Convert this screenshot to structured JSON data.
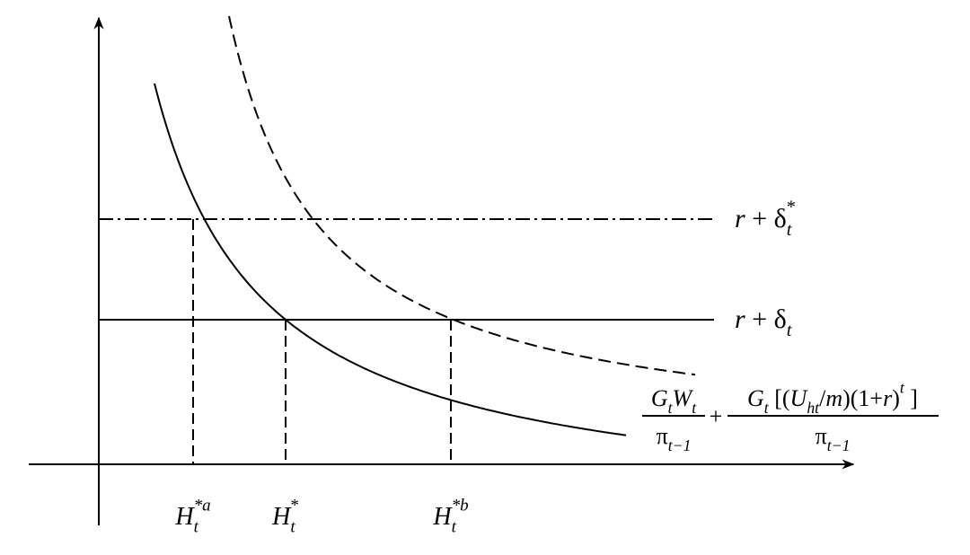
{
  "levels": [
    {
      "label": [
        {
          "text": "r",
          "pos": "base",
          "italic": true
        },
        {
          "text": " + δ",
          "pos": "base"
        },
        {
          "text": "t",
          "pos": "sub",
          "italic": true
        },
        {
          "text": "*",
          "pos": "sup",
          "stack": true
        }
      ]
    },
    {
      "label": [
        {
          "text": "r",
          "pos": "base",
          "italic": true
        },
        {
          "text": " + δ",
          "pos": "base"
        },
        {
          "text": "t",
          "pos": "sub",
          "italic": true
        }
      ]
    }
  ],
  "x_markers": [
    {
      "label": [
        {
          "text": "H",
          "pos": "base",
          "italic": true
        },
        {
          "text": "t",
          "pos": "sub",
          "italic": true
        },
        {
          "text": "*a",
          "pos": "sup",
          "stack": true,
          "italic": true
        }
      ]
    },
    {
      "label": [
        {
          "text": "H",
          "pos": "base",
          "italic": true
        },
        {
          "text": "t",
          "pos": "sub",
          "italic": true
        },
        {
          "text": "*",
          "pos": "sup",
          "stack": true
        }
      ]
    },
    {
      "label": [
        {
          "text": "H",
          "pos": "base",
          "italic": true
        },
        {
          "text": "t",
          "pos": "sub",
          "italic": true
        },
        {
          "text": "*b",
          "pos": "sup",
          "stack": true,
          "italic": true
        }
      ]
    }
  ],
  "curve_label": {
    "terms": [
      {
        "numerator": [
          {
            "text": "G",
            "pos": "base",
            "italic": true
          },
          {
            "text": "t",
            "pos": "sub",
            "italic": true
          },
          {
            "text": "W",
            "pos": "base",
            "italic": true
          },
          {
            "text": "t",
            "pos": "sub",
            "italic": true
          }
        ],
        "denominator": [
          {
            "text": "π",
            "pos": "base"
          },
          {
            "text": "t−1",
            "pos": "sub",
            "italic": true
          }
        ]
      },
      {
        "numerator": [
          {
            "text": "G",
            "pos": "base",
            "italic": true
          },
          {
            "text": "t",
            "pos": "sub",
            "italic": true
          },
          {
            "text": " [(",
            "pos": "base"
          },
          {
            "text": "U",
            "pos": "base",
            "italic": true
          },
          {
            "text": "ht",
            "pos": "sub",
            "italic": true
          },
          {
            "text": "/",
            "pos": "base"
          },
          {
            "text": "m",
            "pos": "base",
            "italic": true
          },
          {
            "text": ")(1+",
            "pos": "base"
          },
          {
            "text": "r",
            "pos": "base",
            "italic": true
          },
          {
            "text": ")",
            "pos": "base"
          },
          {
            "text": "t",
            "pos": "sup",
            "italic": true
          },
          {
            "text": " ]",
            "pos": "base"
          }
        ],
        "denominator": [
          {
            "text": "π",
            "pos": "base"
          },
          {
            "text": "t−1",
            "pos": "sub",
            "italic": true
          }
        ]
      }
    ],
    "operator": "+"
  }
}
